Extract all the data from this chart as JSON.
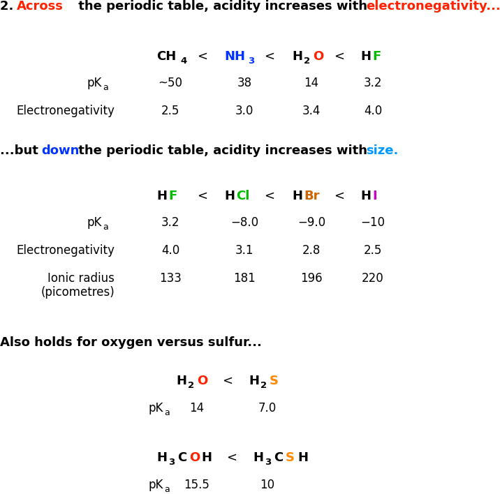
{
  "bg_color": "#ffffff",
  "fs_title": 13.0,
  "fs_body": 12.0,
  "fs_formula": 13.0,
  "fs_sub": 9.5,
  "fs_pka_sub": 9.0
}
